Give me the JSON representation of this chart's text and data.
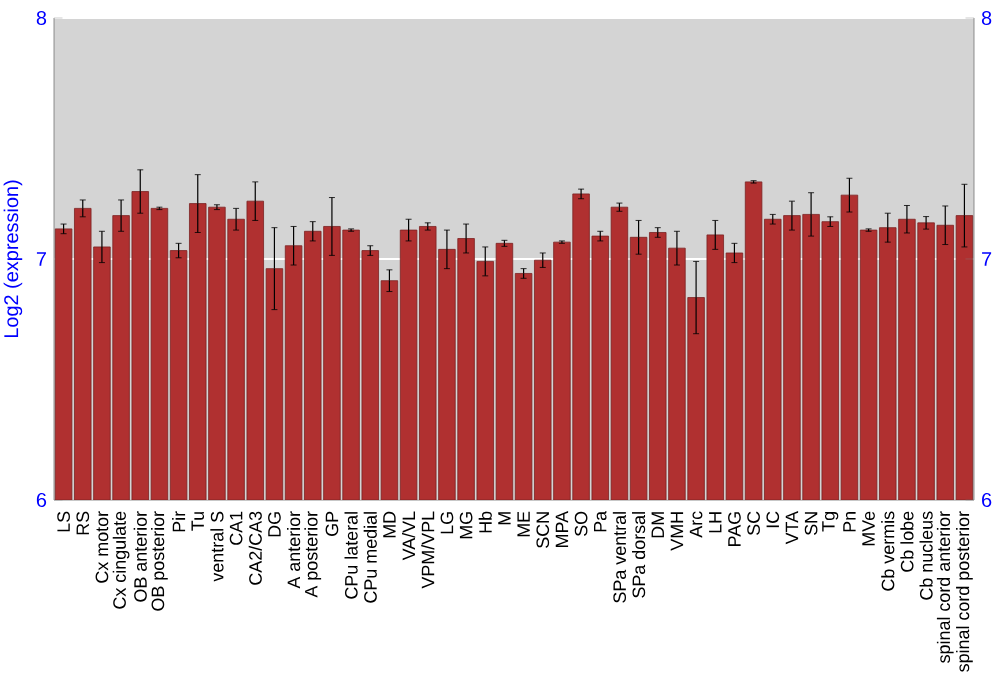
{
  "chart_data": {
    "type": "bar",
    "ylabel": "Log2 (expression)",
    "categories": [
      "LS",
      "RS",
      "Cx motor",
      "Cx cingulate",
      "OB anterior",
      "OB posterior",
      "Pir",
      "Tu",
      "ventral S",
      "CA1",
      "CA2/CA3",
      "DG",
      "A anterior",
      "A posterior",
      "GP",
      "CPu lateral",
      "CPu medial",
      "MD",
      "VA/VL",
      "VPM/VPL",
      "LG",
      "MG",
      "Hb",
      "M",
      "ME",
      "SCN",
      "MPA",
      "SO",
      "Pa",
      "SPa ventral",
      "SPa dorsal",
      "DM",
      "VMH",
      "Arc",
      "LH",
      "PAG",
      "SC",
      "IC",
      "VTA",
      "SN",
      "Tg",
      "Pn",
      "MVe",
      "Cb vermis",
      "Cb lobe",
      "Cb nucleus",
      "spinal cord anterior",
      "spinal cord posterior"
    ],
    "values": [
      7.125,
      7.21,
      7.05,
      7.18,
      7.28,
      7.21,
      7.035,
      7.23,
      7.215,
      7.165,
      7.24,
      6.96,
      7.055,
      7.115,
      7.135,
      7.12,
      7.035,
      6.91,
      7.12,
      7.135,
      7.04,
      7.085,
      6.99,
      7.065,
      6.94,
      6.995,
      7.07,
      7.27,
      7.095,
      7.215,
      7.09,
      7.11,
      7.045,
      6.84,
      7.1,
      7.025,
      7.32,
      7.165,
      7.18,
      7.185,
      7.155,
      7.265,
      7.12,
      7.13,
      7.165,
      7.15,
      7.14,
      7.18
    ],
    "errors": [
      0.02,
      0.035,
      0.065,
      0.065,
      0.09,
      0.005,
      0.03,
      0.12,
      0.01,
      0.045,
      0.08,
      0.17,
      0.08,
      0.04,
      0.12,
      0.005,
      0.02,
      0.045,
      0.045,
      0.015,
      0.08,
      0.06,
      0.06,
      0.0125,
      0.02,
      0.03,
      0.005,
      0.02,
      0.02,
      0.017,
      0.07,
      0.02,
      0.07,
      0.15,
      0.06,
      0.04,
      0.005,
      0.02,
      0.06,
      0.09,
      0.02,
      0.07,
      0.005,
      0.06,
      0.057,
      0.026,
      0.08,
      0.13
    ],
    "color": "#b03030",
    "ylim": [
      6,
      8
    ],
    "yticks": [
      6,
      7,
      8
    ],
    "y2lim": [
      6,
      8
    ],
    "y2ticks": [
      6,
      7,
      8
    ],
    "grid": "y"
  }
}
